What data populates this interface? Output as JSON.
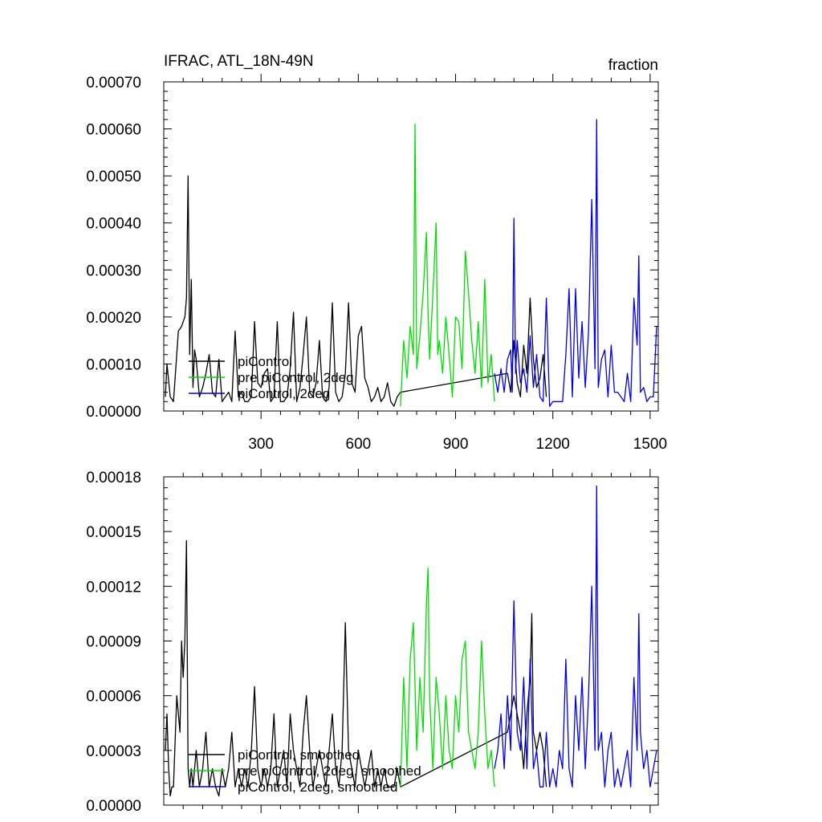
{
  "chart_data": [
    {
      "type": "line",
      "title": "IFRAC, ATL_18N-49N",
      "units_label": "fraction",
      "xlim": [
        0,
        1525
      ],
      "ylim": [
        0,
        0.0007
      ],
      "x_ticks": [
        300,
        600,
        900,
        1200,
        1500
      ],
      "x_tick_labels": [
        "300",
        "600",
        "900",
        "1200",
        "1500"
      ],
      "y_ticks": [
        0,
        0.0001,
        0.0002,
        0.0003,
        0.0004,
        0.0005,
        0.0006,
        0.0007
      ],
      "y_tick_labels": [
        "0.00000",
        "0.00010",
        "0.00020",
        "0.00030",
        "0.00040",
        "0.00050",
        "0.00060",
        "0.00070"
      ],
      "legend_location": "lower-left",
      "series": [
        {
          "name": "piControl",
          "color": "#000000",
          "x": [
            5,
            10,
            20,
            30,
            45,
            55,
            60,
            65,
            70,
            75,
            80,
            85,
            90,
            95,
            100,
            110,
            120,
            130,
            140,
            150,
            160,
            170,
            180,
            190,
            200,
            210,
            220,
            230,
            240,
            250,
            260,
            270,
            280,
            290,
            300,
            310,
            320,
            330,
            340,
            350,
            360,
            370,
            380,
            390,
            400,
            410,
            420,
            430,
            440,
            450,
            460,
            470,
            480,
            490,
            500,
            510,
            520,
            530,
            540,
            550,
            560,
            570,
            580,
            590,
            600,
            610,
            620,
            630,
            640,
            650,
            660,
            670,
            680,
            690,
            700,
            710,
            720,
            730,
            1060,
            1070,
            1080,
            1090,
            1100,
            1110,
            1120,
            1130,
            1140,
            1150,
            1160,
            1170,
            1180
          ],
          "y": [
            3e-05,
            0.0001,
            3e-05,
            2e-05,
            0.00017,
            0.00018,
            0.00019,
            0.0002,
            0.00024,
            0.0005,
            0.00012,
            0.00028,
            5e-05,
            0.00013,
            0.00011,
            3e-05,
            5e-05,
            8e-05,
            0.00012,
            4e-05,
            3e-05,
            0.00011,
            2e-05,
            3e-05,
            4e-05,
            2e-05,
            0.00017,
            3e-05,
            4e-05,
            2e-05,
            2e-05,
            3e-05,
            0.00019,
            6e-05,
            5e-05,
            8e-05,
            9e-05,
            2e-05,
            3e-05,
            0.00019,
            2e-05,
            2e-05,
            3e-05,
            9e-05,
            0.00021,
            2e-05,
            5e-05,
            0.00012,
            0.0002,
            4e-05,
            3e-05,
            6e-05,
            0.00015,
            3e-05,
            2e-05,
            5e-05,
            0.00023,
            4e-05,
            2e-05,
            3e-05,
            8e-05,
            0.00023,
            6e-05,
            4e-05,
            0.00016,
            0.00018,
            7e-05,
            5e-05,
            2e-05,
            3e-05,
            5e-05,
            2e-05,
            3e-05,
            6e-05,
            2e-05,
            1e-05,
            3e-05,
            4e-05,
            8e-05,
            4e-05,
            0.00015,
            6e-05,
            3e-05,
            0.00014,
            8e-05,
            0.00024,
            0.00011,
            5e-05,
            7e-05,
            0.00012,
            3e-05
          ]
        },
        {
          "name": "pre piControl, 2deg",
          "color": "#00dd00",
          "x": [
            730,
            740,
            750,
            760,
            770,
            775,
            780,
            790,
            800,
            810,
            815,
            820,
            830,
            840,
            845,
            850,
            860,
            870,
            880,
            890,
            900,
            910,
            920,
            930,
            940,
            950,
            960,
            970,
            980,
            990,
            1000,
            1010,
            1020
          ],
          "y": [
            1e-05,
            0.00015,
            7e-05,
            0.00018,
            0.00012,
            0.00061,
            9e-05,
            0.00016,
            0.00025,
            0.00038,
            0.00021,
            0.00011,
            0.00025,
            0.0004,
            0.00012,
            0.00015,
            8e-05,
            0.0002,
            0.00012,
            3e-05,
            0.0002,
            0.00019,
            9e-05,
            0.00034,
            0.00025,
            0.00015,
            8e-05,
            0.00019,
            5e-05,
            0.00028,
            6e-05,
            0.00012,
            2e-05
          ]
        },
        {
          "name": "piControl, 2deg",
          "color": "#0000ee",
          "x": [
            1020,
            1030,
            1040,
            1050,
            1060,
            1070,
            1075,
            1080,
            1085,
            1090,
            1100,
            1110,
            1120,
            1130,
            1140,
            1150,
            1160,
            1170,
            1180,
            1190,
            1200,
            1210,
            1220,
            1230,
            1240,
            1250,
            1260,
            1270,
            1280,
            1290,
            1300,
            1310,
            1320,
            1330,
            1335,
            1340,
            1350,
            1360,
            1370,
            1380,
            1390,
            1400,
            1410,
            1420,
            1430,
            1440,
            1450,
            1460,
            1465,
            1470,
            1480,
            1490,
            1500,
            1510,
            1520
          ],
          "y": [
            8e-05,
            4e-05,
            9e-05,
            4e-05,
            0.00011,
            0.00013,
            4e-05,
            0.00041,
            8e-05,
            0.00015,
            6e-05,
            9e-05,
            4e-05,
            0.00016,
            5e-05,
            0.00012,
            3e-05,
            2e-05,
            0.00024,
            1e-05,
            2e-05,
            2e-05,
            2e-05,
            2e-05,
            0.00012,
            0.00026,
            3e-05,
            0.00026,
            7e-05,
            0.00019,
            5e-05,
            0.00017,
            0.00045,
            9e-05,
            0.00062,
            5e-05,
            0.00011,
            0.00013,
            3e-05,
            0.00014,
            4e-05,
            4e-05,
            3e-05,
            2e-05,
            8e-05,
            2e-05,
            0.00024,
            0.00014,
            0.00033,
            4e-05,
            5e-05,
            2e-05,
            3e-05,
            3e-05,
            0.00018
          ]
        }
      ]
    },
    {
      "type": "line",
      "xlim": [
        0,
        1525
      ],
      "ylim": [
        0,
        0.00018
      ],
      "x_ticks": [
        300,
        600,
        900,
        1200,
        1500
      ],
      "y_ticks": [
        0,
        3e-05,
        6e-05,
        9e-05,
        0.00012,
        0.00015,
        0.00018
      ],
      "y_tick_labels": [
        "0.00000",
        "0.00003",
        "0.00006",
        "0.00009",
        "0.00012",
        "0.00015",
        "0.00018"
      ],
      "legend_location": "lower-left",
      "series": [
        {
          "name": "piControl, smoothed",
          "color": "#000000",
          "x": [
            5,
            10,
            15,
            20,
            25,
            30,
            40,
            50,
            55,
            60,
            65,
            70,
            75,
            80,
            85,
            90,
            100,
            110,
            120,
            130,
            140,
            150,
            160,
            170,
            180,
            190,
            200,
            210,
            220,
            230,
            240,
            250,
            260,
            270,
            280,
            290,
            300,
            310,
            320,
            330,
            340,
            350,
            360,
            370,
            380,
            390,
            400,
            410,
            420,
            430,
            440,
            450,
            460,
            470,
            480,
            490,
            500,
            510,
            520,
            530,
            540,
            550,
            560,
            570,
            580,
            590,
            600,
            610,
            620,
            630,
            640,
            650,
            660,
            670,
            680,
            690,
            700,
            710,
            720,
            730,
            1060,
            1080,
            1100,
            1110,
            1120,
            1130,
            1135,
            1140,
            1150,
            1160,
            1170,
            1180
          ],
          "y": [
            3e-05,
            5e-05,
            2e-05,
            5e-06,
            1e-05,
            1e-05,
            6e-05,
            4e-05,
            9e-05,
            7e-05,
            9e-05,
            0.000145,
            2e-05,
            1e-05,
            2e-05,
            1e-05,
            3e-05,
            1e-05,
            2e-05,
            4e-05,
            1e-05,
            2e-05,
            1e-05,
            5e-06,
            2e-05,
            1e-05,
            2e-05,
            4e-05,
            1e-05,
            2e-05,
            1e-05,
            2e-05,
            1e-05,
            3e-05,
            6.5e-05,
            2e-05,
            1e-05,
            2e-05,
            1e-05,
            2e-05,
            5e-05,
            1e-05,
            2e-05,
            3e-05,
            1e-05,
            5e-05,
            3e-05,
            2e-05,
            1e-05,
            4e-05,
            6e-05,
            3e-05,
            1e-05,
            2e-05,
            3e-05,
            2e-05,
            1e-05,
            3e-05,
            5e-05,
            2e-05,
            1e-05,
            3e-05,
            0.0001,
            3e-05,
            2e-05,
            1e-05,
            3e-05,
            2e-05,
            1e-05,
            2e-05,
            3e-05,
            1e-05,
            2e-05,
            1e-05,
            2e-05,
            1e-05,
            1e-05,
            1e-05,
            2e-05,
            1e-05,
            4e-05,
            6e-05,
            4e-05,
            2e-05,
            5e-05,
            7e-05,
            0.000105,
            4e-05,
            3e-05,
            4e-05,
            3e-05,
            1e-05
          ]
        },
        {
          "name": "pre piControl, 2deg, smoothed",
          "color": "#00dd00",
          "x": [
            730,
            740,
            750,
            760,
            770,
            780,
            790,
            800,
            810,
            815,
            820,
            830,
            840,
            850,
            860,
            870,
            880,
            890,
            900,
            910,
            920,
            930,
            940,
            950,
            960,
            970,
            980,
            990,
            1000,
            1010,
            1020
          ],
          "y": [
            1e-05,
            7e-05,
            2e-05,
            8e-05,
            0.0001,
            3e-05,
            7e-05,
            4e-05,
            0.00011,
            0.00013,
            6e-05,
            2e-05,
            7e-05,
            5e-05,
            2e-05,
            6e-05,
            3e-05,
            2e-05,
            6e-05,
            4e-05,
            8e-05,
            9e-05,
            4e-05,
            3e-05,
            2e-05,
            4e-05,
            9e-05,
            5e-05,
            2e-05,
            3e-05,
            1e-05
          ]
        },
        {
          "name": "piControl, 2deg, smoothed",
          "color": "#0000ee",
          "x": [
            1020,
            1030,
            1040,
            1050,
            1060,
            1070,
            1080,
            1090,
            1100,
            1110,
            1120,
            1130,
            1140,
            1150,
            1160,
            1170,
            1180,
            1190,
            1200,
            1210,
            1220,
            1230,
            1240,
            1250,
            1260,
            1270,
            1280,
            1290,
            1300,
            1310,
            1320,
            1330,
            1335,
            1340,
            1350,
            1360,
            1370,
            1380,
            1390,
            1400,
            1410,
            1420,
            1430,
            1440,
            1450,
            1460,
            1465,
            1470,
            1480,
            1490,
            1500,
            1510,
            1520
          ],
          "y": [
            2e-05,
            3e-05,
            5e-05,
            2e-05,
            6e-05,
            3e-05,
            0.000112,
            4e-05,
            3e-05,
            7e-05,
            2e-05,
            8e-05,
            2e-05,
            3e-05,
            1e-05,
            1e-05,
            4e-05,
            1e-05,
            2e-05,
            1e-05,
            3e-05,
            2e-05,
            8e-05,
            2e-05,
            1e-05,
            6e-05,
            3e-05,
            7e-05,
            2e-05,
            6e-05,
            0.00012,
            3e-05,
            0.000175,
            3e-05,
            4e-05,
            1e-05,
            3e-05,
            4e-05,
            1e-05,
            2e-05,
            1e-05,
            2e-05,
            3e-05,
            1e-05,
            7e-05,
            3e-05,
            0.000105,
            4e-05,
            2e-05,
            3e-05,
            1e-05,
            2e-05,
            3e-05
          ]
        }
      ]
    }
  ]
}
